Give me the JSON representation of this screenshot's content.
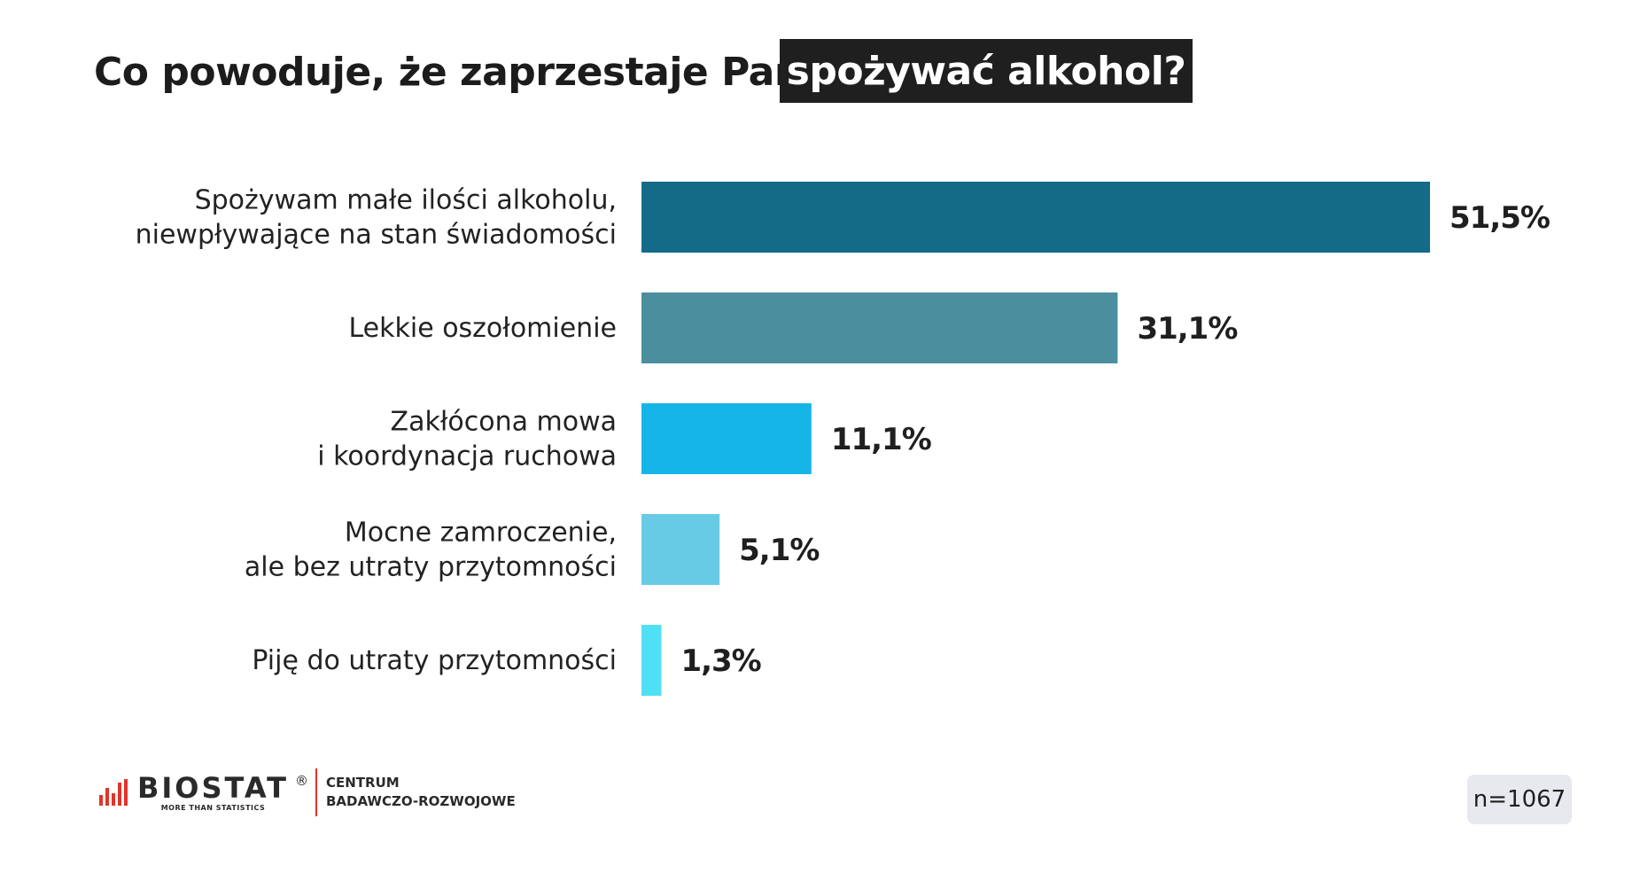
{
  "title": {
    "main": "Co powoduje, że zaprzestaje Pan/i",
    "highlight": "spożywać alkohol?"
  },
  "chart_data": {
    "type": "bar",
    "orientation": "horizontal",
    "categories": [
      [
        "Spożywam małe ilości alkoholu,",
        "niewpływające na stan świadomości"
      ],
      [
        "Lekkie oszołomienie"
      ],
      [
        "Zakłócona mowa",
        "i koordynacja ruchowa"
      ],
      [
        "Mocne zamroczenie,",
        "ale bez utraty przytomności"
      ],
      [
        "Piję do utraty przytomności"
      ]
    ],
    "values": [
      51.5,
      31.1,
      11.1,
      5.1,
      1.3
    ],
    "value_labels": [
      "51,5%",
      "31,1%",
      "11,1%",
      "5,1%",
      "1,3%"
    ],
    "colors": [
      "#136b87",
      "#4b8f9f",
      "#16b5e8",
      "#68cbe6",
      "#4fe0f5"
    ],
    "unit": "%",
    "xlim": [
      0,
      51.5
    ],
    "grid": false,
    "legend": "none"
  },
  "footer": {
    "logo_name": "BIOSTAT",
    "logo_reg": "®",
    "logo_tagline": "MORE THAN STATISTICS",
    "centre_line1": "CENTRUM",
    "centre_line2": "BADAWCZO-ROZWOJOWE",
    "sample": "n=1067"
  }
}
